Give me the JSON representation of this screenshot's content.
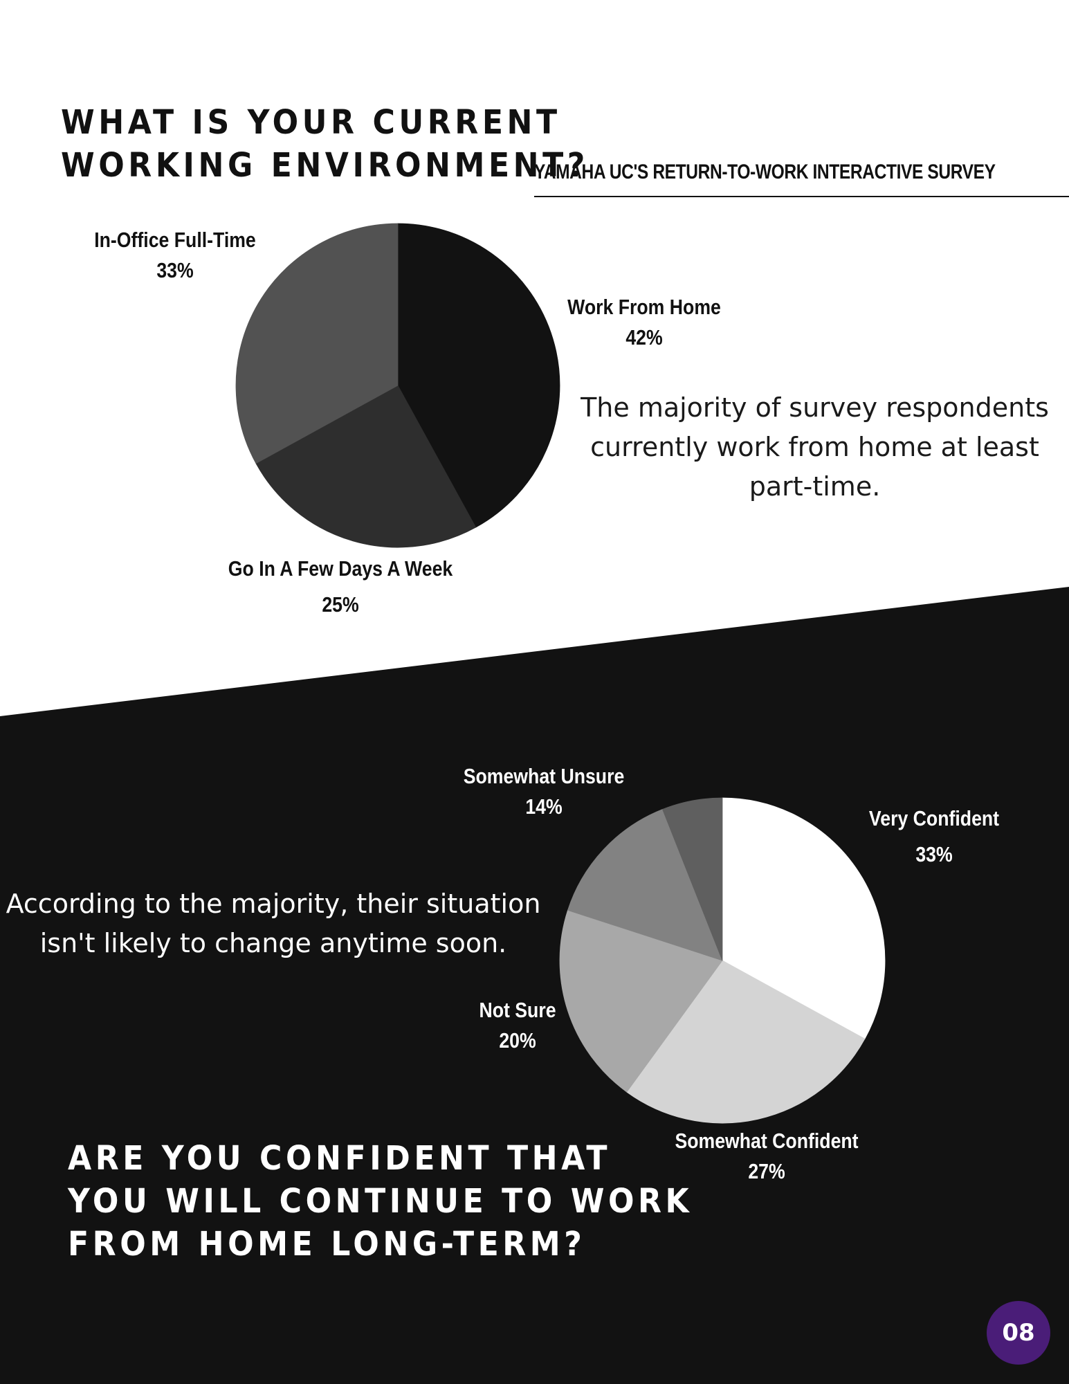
{
  "colors": {
    "page_top": "#ffffff",
    "page_bottom": "#121212",
    "badge": "#4a1d78"
  },
  "page_number": "08",
  "survey_name": "YAMAHA UC'S RETURN-TO-WORK INTERACTIVE SURVEY",
  "chart_data": [
    {
      "type": "pie",
      "title": "WHAT IS YOUR CURRENT\nWORKING ENVIRONMENT?",
      "categories": [
        "Work From Home",
        "Go In A Few Days A Week",
        "In-Office Full-Time"
      ],
      "values": [
        42,
        25,
        33
      ],
      "value_labels": [
        "42%",
        "25%",
        "33%"
      ],
      "colors": [
        "#121212",
        "#2e2e2e",
        "#525252"
      ],
      "note": "The majority of survey respondents currently work from home at least part-time."
    },
    {
      "type": "pie",
      "title": "ARE YOU CONFIDENT THAT\nYOU WILL CONTINUE TO WORK\nFROM HOME LONG-TERM?",
      "categories": [
        "Very Confident",
        "Somewhat Confident",
        "Not Sure",
        "Somewhat Unsure",
        ""
      ],
      "values": [
        33,
        27,
        20,
        14,
        6
      ],
      "value_labels": [
        "33%",
        "27%",
        "20%",
        "14%",
        ""
      ],
      "colors": [
        "#ffffff",
        "#d4d4d4",
        "#a8a8a8",
        "#828282",
        "#5f5f5f"
      ],
      "note": "According to the majority, their situation isn't likely to change anytime soon."
    }
  ]
}
